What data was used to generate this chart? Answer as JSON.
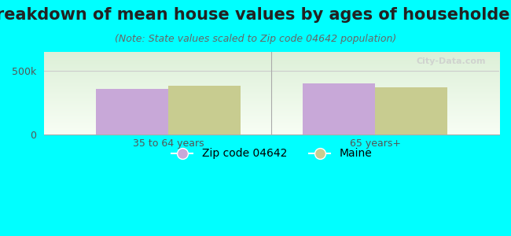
{
  "title": "Breakdown of mean house values by ages of householders",
  "subtitle": "(Note: State values scaled to Zip code 04642 population)",
  "categories": [
    "35 to 64 years",
    "65 years+"
  ],
  "zip_values": [
    360000,
    400000
  ],
  "state_values": [
    385000,
    370000
  ],
  "bar_color_zip": "#c8a8d8",
  "bar_color_state": "#c8cc90",
  "background_color": "#00ffff",
  "plot_bg_top": "#ddf0d8",
  "plot_bg_bottom": "#f8fef5",
  "ylim": [
    0,
    650000
  ],
  "yticks": [
    0,
    500000
  ],
  "ytick_labels": [
    "0",
    "500k"
  ],
  "legend_zip_label": "Zip code 04642",
  "legend_state_label": "Maine",
  "bar_width": 0.35,
  "watermark": "City-Data.com",
  "title_fontsize": 15,
  "subtitle_fontsize": 9,
  "tick_fontsize": 9,
  "legend_fontsize": 10
}
